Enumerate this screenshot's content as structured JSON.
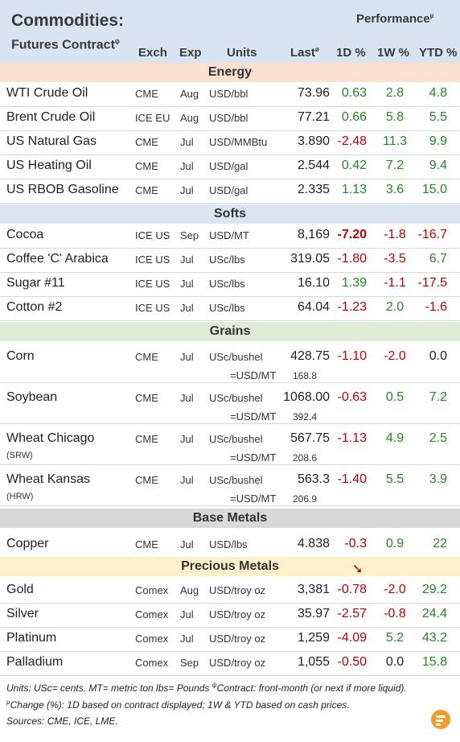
{
  "header": {
    "title": "Commodities:",
    "subtitle": "Futures Contract",
    "subtitle_sup": "ψ",
    "performance": "Performance",
    "performance_sup": "µ",
    "columns": {
      "exch": "Exch",
      "exp": "Exp",
      "units": "Units",
      "last": "Last",
      "last_sup": "ø",
      "d1": "1D %",
      "w1": "1W %",
      "ytd": "YTD %"
    }
  },
  "sections": [
    {
      "label": "Energy",
      "color": "#fbe1d1"
    },
    {
      "label": "Softs",
      "color": "#dae5f1"
    },
    {
      "label": "Grains",
      "color": "#e1ecd7"
    },
    {
      "label": "Base Metals",
      "color": "#d9d9d9"
    },
    {
      "label": "Precious Metals",
      "color": "#fdf0cb"
    }
  ],
  "energy": [
    {
      "name": "WTI Crude Oil",
      "exch": "CME",
      "exp": "Aug",
      "units": "USD/bbl",
      "last": "73.96",
      "d1": "0.63",
      "w1": "2.8",
      "ytd": "4.8"
    },
    {
      "name": "Brent Crude Oil",
      "exch": "ICE EU",
      "exp": "Aug",
      "units": "USD/bbl",
      "last": "77.21",
      "d1": "0.66",
      "w1": "5.8",
      "ytd": "5.5"
    },
    {
      "name": "US Natural Gas",
      "exch": "CME",
      "exp": "Jul",
      "units": "USD/MMBtu",
      "last": "3.890",
      "d1": "-2.48",
      "w1": "11.3",
      "ytd": "9.9"
    },
    {
      "name": "US Heating Oil",
      "exch": "CME",
      "exp": "Jul",
      "units": "USD/gal",
      "last": "2.544",
      "d1": "0.42",
      "w1": "7.2",
      "ytd": "9.4"
    },
    {
      "name": "US RBOB Gasoline",
      "exch": "CME",
      "exp": "Jul",
      "units": "USD/gal",
      "last": "2.335",
      "d1": "1.13",
      "w1": "3.6",
      "ytd": "15.0"
    }
  ],
  "softs": [
    {
      "name": "Cocoa",
      "exch": "ICE US",
      "exp": "Sep",
      "units": "USD/MT",
      "last": "8,169",
      "d1": "-7.20",
      "w1": "-1.8",
      "ytd": "-16.7"
    },
    {
      "name": "Coffee 'C' Arabica",
      "exch": "ICE US",
      "exp": "Jul",
      "units": "USc/lbs",
      "last": "319.05",
      "d1": "-1.80",
      "w1": "-3.5",
      "ytd": "6.7"
    },
    {
      "name": "Sugar #11",
      "exch": "ICE US",
      "exp": "Jul",
      "units": "USc/lbs",
      "last": "16.10",
      "d1": "1.39",
      "w1": "-1.1",
      "ytd": "-17.5"
    },
    {
      "name": "Cotton #2",
      "exch": "ICE US",
      "exp": "Jul",
      "units": "USc/lbs",
      "last": "64.04",
      "d1": "-1.23",
      "w1": "2.0",
      "ytd": "-1.6"
    }
  ],
  "grains": [
    {
      "name": "Corn",
      "sub": "",
      "exch": "CME",
      "exp": "Jul",
      "units": "USc/bushel",
      "last": "428.75",
      "d1": "-1.10",
      "w1": "-2.0",
      "ytd": "0.0",
      "eq": "=USD/MT",
      "conv": "168.8"
    },
    {
      "name": "Soybean",
      "sub": "",
      "exch": "CME",
      "exp": "Jul",
      "units": "USc/bushel",
      "last": "1068.00",
      "d1": "-0.63",
      "w1": "0.5",
      "ytd": "7.2",
      "eq": "=USD/MT",
      "conv": "392.4"
    },
    {
      "name": "Wheat Chicago",
      "sub": "(SRW)",
      "exch": "CME",
      "exp": "Jul",
      "units": "USc/bushel",
      "last": "567.75",
      "d1": "-1.13",
      "w1": "4.9",
      "ytd": "2.5",
      "eq": "=USD/MT",
      "conv": "208.6"
    },
    {
      "name": "Wheat Kansas",
      "sub": "(HRW)",
      "exch": "CME",
      "exp": "Jul",
      "units": "USc/bushel",
      "last": "563.3",
      "d1": "-1.40",
      "w1": "5.5",
      "ytd": "3.9",
      "eq": "=USD/MT",
      "conv": "206.9"
    }
  ],
  "base": [
    {
      "name": "Copper",
      "exch": "CME",
      "exp": "Jul",
      "units": "USD/lbs",
      "last": "4.838",
      "d1": "-0.3",
      "w1": "0.9",
      "ytd": "22"
    }
  ],
  "precious": [
    {
      "name": "Gold",
      "exch": "Comex",
      "exp": "Aug",
      "units": "USD/troy oz",
      "last": "3,381",
      "d1": "-0.78",
      "w1": "-2.0",
      "ytd": "29.2"
    },
    {
      "name": "Silver",
      "exch": "Comex",
      "exp": "Jul",
      "units": "USD/troy oz",
      "last": "35.97",
      "d1": "-2.57",
      "w1": "-0.8",
      "ytd": "24.4"
    },
    {
      "name": "Platinum",
      "exch": "Comex",
      "exp": "Jul",
      "units": "USD/troy oz",
      "last": "1,259",
      "d1": "-4.09",
      "w1": "5.2",
      "ytd": "43.2"
    },
    {
      "name": "Palladium",
      "exch": "Comex",
      "exp": "Sep",
      "units": "USD/troy oz",
      "last": "1,055",
      "d1": "-0.50",
      "w1": "0.0",
      "ytd": "15.8"
    }
  ],
  "arrow": "➘",
  "footer": {
    "line1": "Units: USc= cents.   MT= metric ton    lbs= Pounds",
    "line1_sup": "ψ",
    "line1_b": "Contract: front-month (or next if more liquid).",
    "line2_sup": "µ",
    "line2": "Change (%): 1D based on contract displayed; 1W & YTD based on cash prices.",
    "line3": "Sources: CME, ICE, LME."
  },
  "colors": {
    "positive": "#1f8a1f",
    "negative": "#c00000",
    "header_bg": "#d9e4f2"
  },
  "logo_icon": "stacked-lines-logo"
}
